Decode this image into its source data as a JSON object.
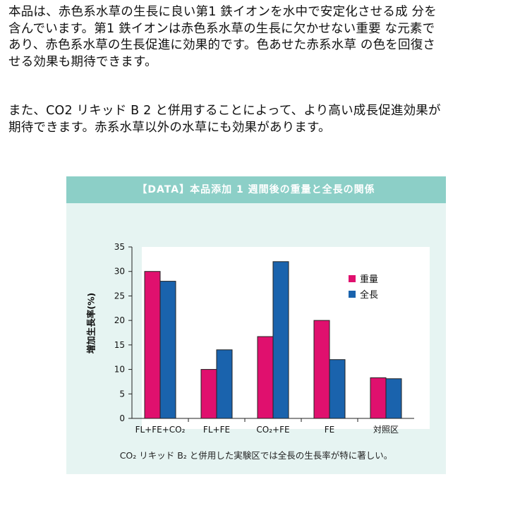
{
  "paragraphs": [
    "本品は、赤色系水草の生長に良い第1 鉄イオンを水中で安定化させる成 分を\n含んでいます。第1 鉄イオンは赤色系水草の生長に欠かせない重要 な元素で\nあり、赤色系水草の生長促進に効果的です。色あせた赤系水草 の色を回復さ\nせる効果も期待できます。",
    "また、CO2 リキッド B 2 と併用することによって、より高い成長促進効果が\n期待できます。赤系水草以外の水草にも効果があります。"
  ],
  "panel": {
    "title": "【DATA】本品添加 1 週間後の重量と全長の関係",
    "caption": "CO₂ リキッド B₂ と併用した実験区では全長の生長率が特に著しい。"
  },
  "chart_data": {
    "type": "bar",
    "categories": [
      "FL+FE+CO₂",
      "FL+FE",
      "CO₂+FE",
      "FE",
      "対照区"
    ],
    "series": [
      {
        "name": "重量",
        "values": [
          30,
          10,
          16.7,
          20,
          8.3
        ],
        "color": "#e0106e"
      },
      {
        "name": "全長",
        "values": [
          28,
          14,
          32,
          12,
          8.1
        ],
        "color": "#1a63ad"
      }
    ],
    "ylabel": "増加生長率(%)",
    "ylim": [
      0,
      35
    ],
    "yticks": [
      0,
      5,
      10,
      15,
      20,
      25,
      30,
      35
    ],
    "legend_position": "top-right",
    "grid": false
  }
}
